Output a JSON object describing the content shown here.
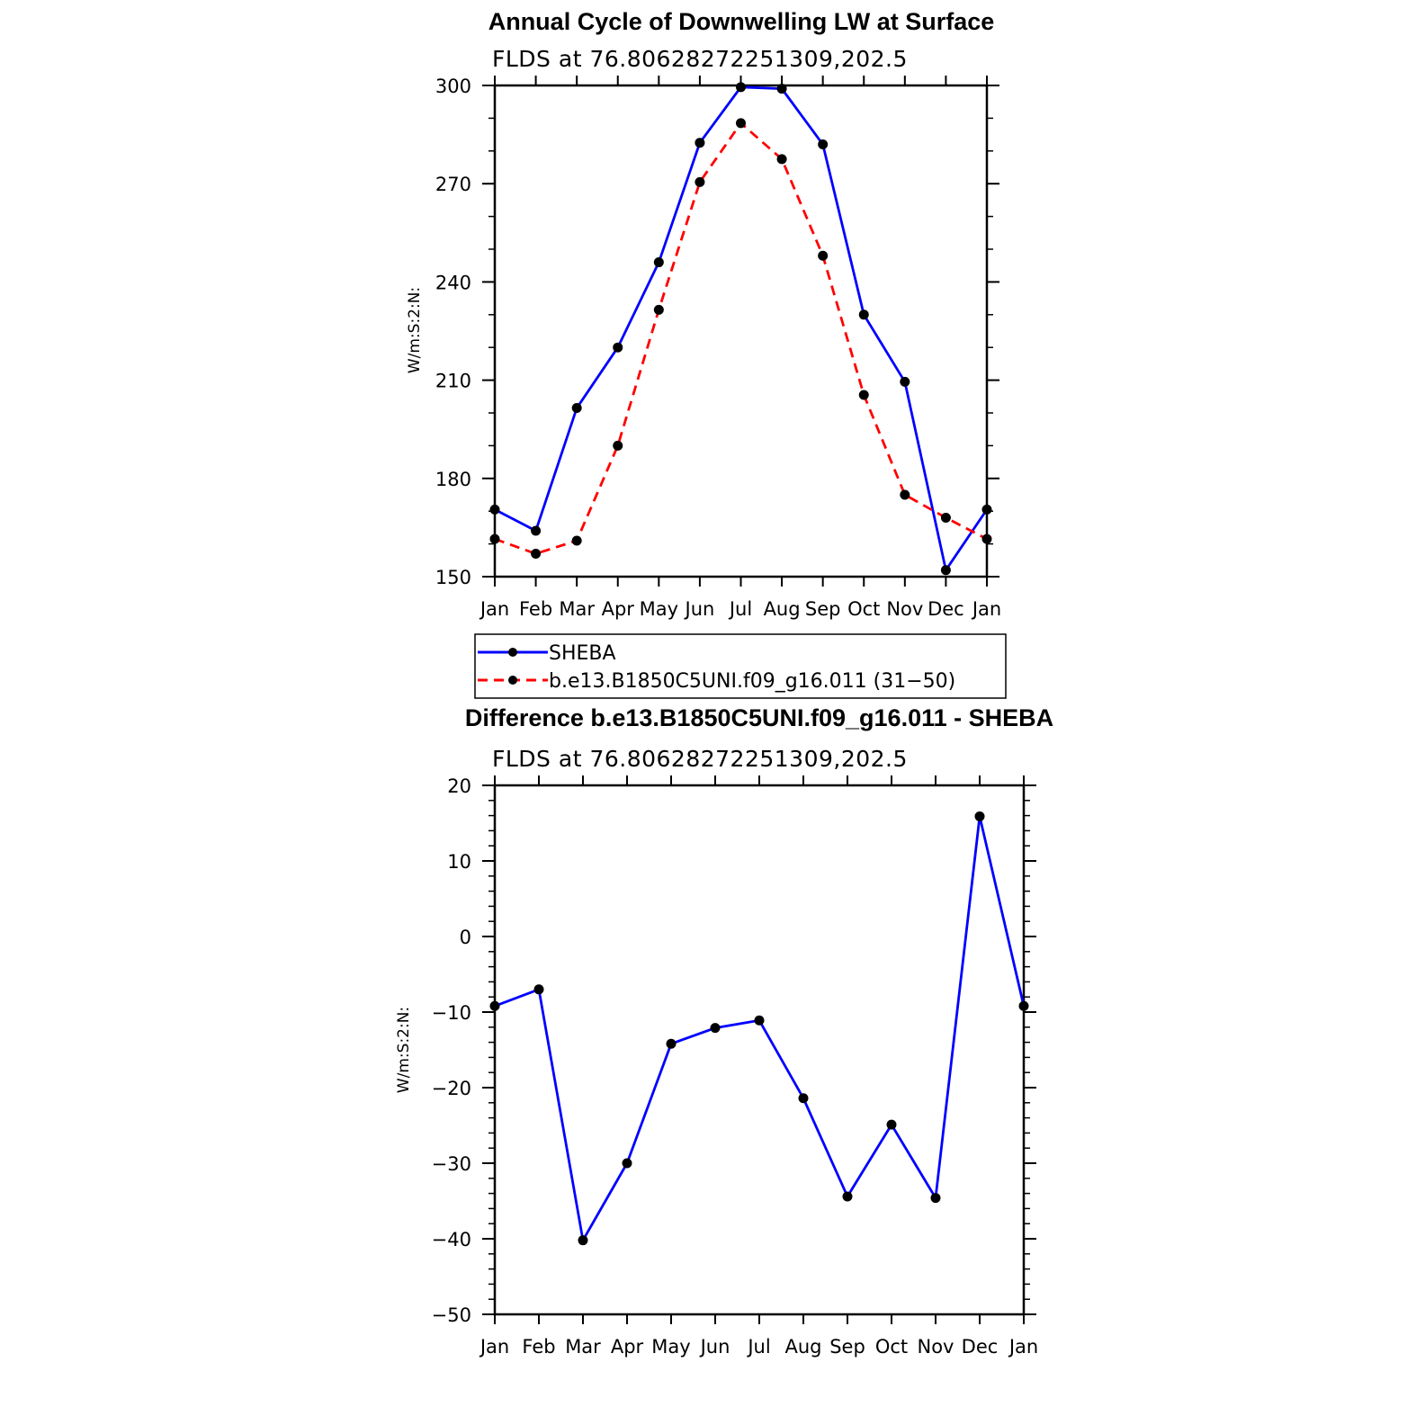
{
  "chart_data": [
    {
      "type": "line",
      "title": "Annual Cycle of Downwelling LW at Surface",
      "subtitle": "FLDS at 76.80628272251309,202.5",
      "ylabel": "W/m:S:2:N:",
      "xlabel": "",
      "categories": [
        "Jan",
        "Feb",
        "Mar",
        "Apr",
        "May",
        "Jun",
        "Jul",
        "Aug",
        "Sep",
        "Oct",
        "Nov",
        "Dec",
        "Jan"
      ],
      "ylim": [
        150,
        300
      ],
      "yticks": [
        150,
        180,
        210,
        240,
        270,
        300
      ],
      "series": [
        {
          "name": "SHEBA",
          "color": "#0000ff",
          "dash": "solid",
          "values": [
            170.5,
            164,
            201.5,
            220,
            246,
            282.5,
            299.5,
            299,
            282,
            230,
            209.5,
            152,
            170.5
          ]
        },
        {
          "name": "b.e13.B1850C5UNI.f09_g16.011 (31−50)",
          "color": "#ff0000",
          "dash": "dashed",
          "values": [
            161.5,
            157,
            161,
            190,
            231.5,
            270.5,
            288.5,
            277.5,
            248,
            205.5,
            175,
            168,
            161.5
          ]
        }
      ],
      "legend": "below"
    },
    {
      "type": "line",
      "title": "Difference b.e13.B1850C5UNI.f09_g16.011 - SHEBA",
      "subtitle": "FLDS at 76.80628272251309,202.5",
      "ylabel": "W/m:S:2:N:",
      "xlabel": "",
      "categories": [
        "Jan",
        "Feb",
        "Mar",
        "Apr",
        "May",
        "Jun",
        "Jul",
        "Aug",
        "Sep",
        "Oct",
        "Nov",
        "Dec",
        "Jan"
      ],
      "ylim": [
        -50,
        20
      ],
      "yticks": [
        -50,
        -40,
        -30,
        -20,
        -10,
        0,
        10,
        20
      ],
      "series": [
        {
          "color": "#0000ff",
          "dash": "solid",
          "values": [
            -9.2,
            -7,
            -40.2,
            -30,
            -14.2,
            -12.1,
            -11.1,
            -21.4,
            -34.4,
            -24.9,
            -34.6,
            15.9,
            -9.2
          ]
        }
      ]
    }
  ]
}
